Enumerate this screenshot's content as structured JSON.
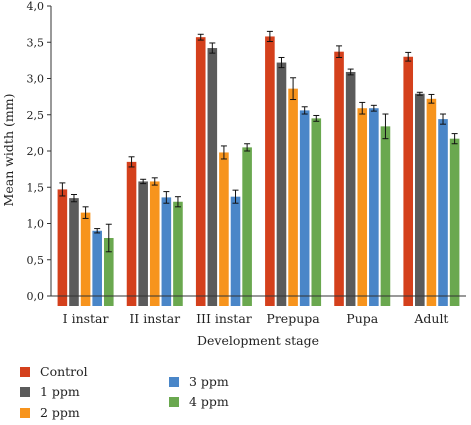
{
  "chart_data": {
    "type": "bar",
    "title": "",
    "xlabel": "Development stage",
    "ylabel": "Mean width (mm)",
    "ylim": [
      0,
      4
    ],
    "yticks": [
      "0,0",
      "0,5",
      "1,0",
      "1,5",
      "2,0",
      "2,5",
      "3,0",
      "3,5",
      "4,0"
    ],
    "categories": [
      "I instar",
      "II instar",
      "III instar",
      "Prepupa",
      "Pupa",
      "Adult"
    ],
    "series": [
      {
        "name": "Control",
        "color": "#d4401c",
        "values": [
          1.47,
          1.85,
          3.57,
          3.58,
          3.37,
          3.3
        ],
        "errors": [
          0.09,
          0.07,
          0.04,
          0.07,
          0.08,
          0.06
        ]
      },
      {
        "name": "1 ppm",
        "color": "#5b5b5b",
        "values": [
          1.35,
          1.58,
          3.42,
          3.22,
          3.09,
          2.79
        ],
        "errors": [
          0.05,
          0.03,
          0.07,
          0.07,
          0.04,
          0.02
        ]
      },
      {
        "name": "2 ppm",
        "color": "#f7941d",
        "values": [
          1.15,
          1.58,
          1.98,
          2.86,
          2.59,
          2.72
        ],
        "errors": [
          0.08,
          0.05,
          0.09,
          0.15,
          0.08,
          0.06
        ]
      },
      {
        "name": "3 ppm",
        "color": "#4a86c8",
        "values": [
          0.9,
          1.36,
          1.37,
          2.56,
          2.59,
          2.44
        ],
        "errors": [
          0.03,
          0.08,
          0.09,
          0.05,
          0.04,
          0.07
        ]
      },
      {
        "name": "4 ppm",
        "color": "#6aa84f",
        "values": [
          0.8,
          1.3,
          2.05,
          2.45,
          2.34,
          2.17
        ],
        "errors": [
          0.19,
          0.07,
          0.05,
          0.04,
          0.17,
          0.07
        ]
      }
    ],
    "grid": false,
    "legend_position": "bottom-left"
  }
}
